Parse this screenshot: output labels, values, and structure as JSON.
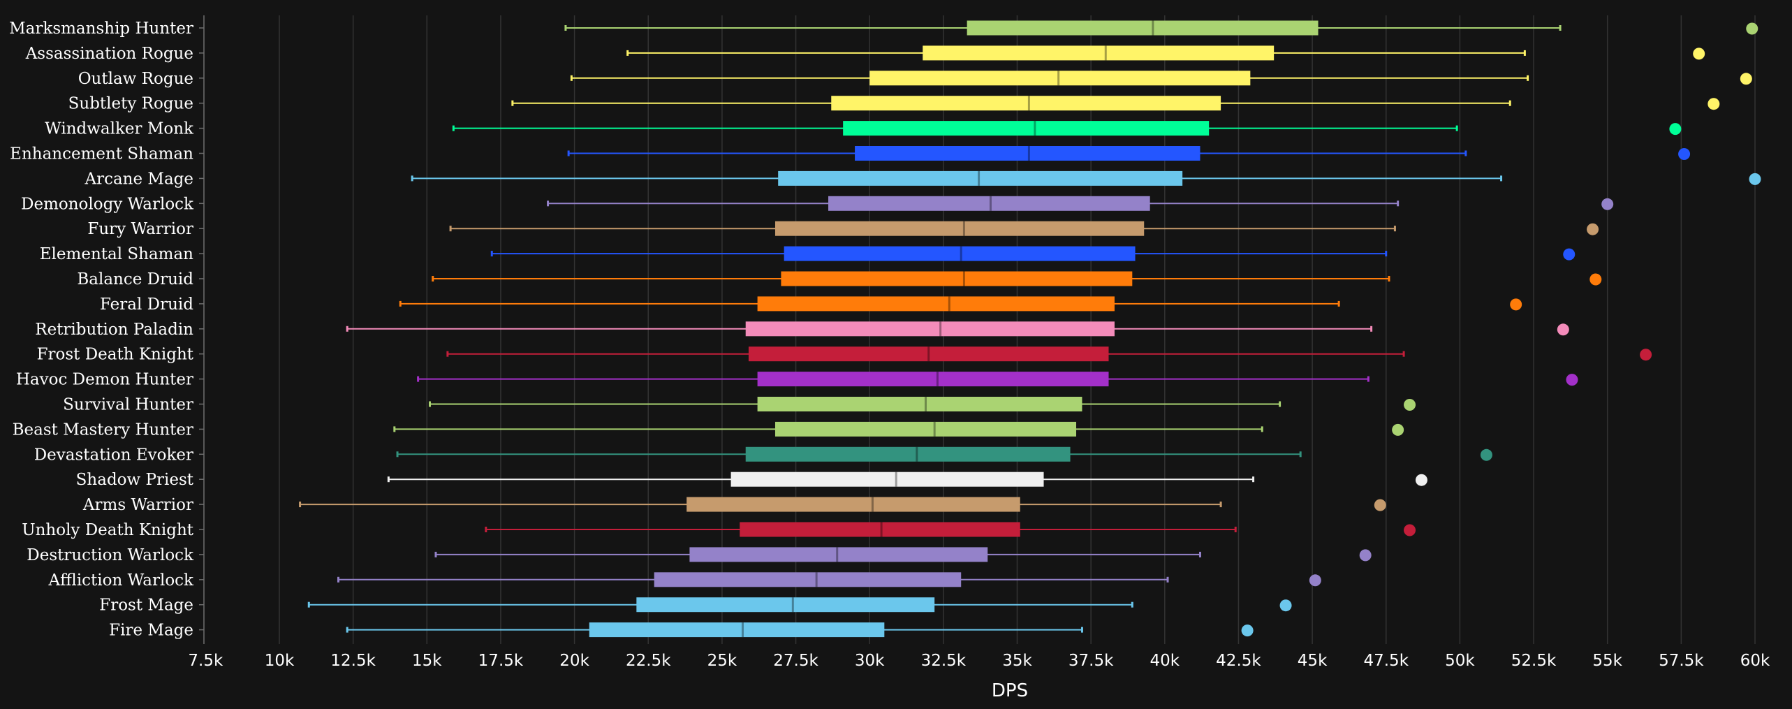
{
  "chart_data": {
    "type": "box",
    "xlabel": "DPS",
    "ylabel": "",
    "xlim": [
      7500,
      60500
    ],
    "x_ticks": [
      7500,
      10000,
      12500,
      15000,
      17500,
      20000,
      22500,
      25000,
      27500,
      30000,
      32500,
      35000,
      37500,
      40000,
      42500,
      45000,
      47500,
      50000,
      52500,
      55000,
      57500,
      60000
    ],
    "x_tick_labels": [
      "7.5k",
      "10k",
      "12.5k",
      "15k",
      "17.5k",
      "20k",
      "22.5k",
      "25k",
      "27.5k",
      "30k",
      "32.5k",
      "35k",
      "37.5k",
      "40k",
      "42.5k",
      "45k",
      "47.5k",
      "50k",
      "52.5k",
      "55k",
      "57.5k",
      "60k"
    ],
    "grid": true,
    "legend": "none",
    "series": [
      {
        "label": "Marksmanship Hunter",
        "color": "#aad372",
        "whisker_low": 19700,
        "q1": 33300,
        "median": 39600,
        "q3": 45200,
        "whisker_high": 53400,
        "outlier": 59900
      },
      {
        "label": "Assassination Rogue",
        "color": "#fff468",
        "whisker_low": 21800,
        "q1": 31800,
        "median": 38000,
        "q3": 43700,
        "whisker_high": 52200,
        "outlier": 58100
      },
      {
        "label": "Outlaw Rogue",
        "color": "#fff468",
        "whisker_low": 19900,
        "q1": 30000,
        "median": 36400,
        "q3": 42900,
        "whisker_high": 52300,
        "outlier": 59700
      },
      {
        "label": "Subtlety Rogue",
        "color": "#fff468",
        "whisker_low": 17900,
        "q1": 28700,
        "median": 35400,
        "q3": 41900,
        "whisker_high": 51700,
        "outlier": 58600
      },
      {
        "label": "Windwalker Monk",
        "color": "#00ff98",
        "whisker_low": 15900,
        "q1": 29100,
        "median": 35600,
        "q3": 41500,
        "whisker_high": 49900,
        "outlier": 57300
      },
      {
        "label": "Enhancement Shaman",
        "color": "#2456ff",
        "whisker_low": 19800,
        "q1": 29500,
        "median": 35400,
        "q3": 41200,
        "whisker_high": 50200,
        "outlier": 57600
      },
      {
        "label": "Arcane Mage",
        "color": "#6bc7ec",
        "whisker_low": 14500,
        "q1": 26900,
        "median": 33700,
        "q3": 40600,
        "whisker_high": 51400,
        "outlier": 60000
      },
      {
        "label": "Demonology Warlock",
        "color": "#9482c9",
        "whisker_low": 19100,
        "q1": 28600,
        "median": 34100,
        "q3": 39500,
        "whisker_high": 47900,
        "outlier": 55000
      },
      {
        "label": "Fury Warrior",
        "color": "#c69b6d",
        "whisker_low": 15800,
        "q1": 26800,
        "median": 33200,
        "q3": 39300,
        "whisker_high": 47800,
        "outlier": 54500
      },
      {
        "label": "Elemental Shaman",
        "color": "#2456ff",
        "whisker_low": 17200,
        "q1": 27100,
        "median": 33100,
        "q3": 39000,
        "whisker_high": 47500,
        "outlier": 53700
      },
      {
        "label": "Balance Druid",
        "color": "#ff7c0a",
        "whisker_low": 15200,
        "q1": 27000,
        "median": 33200,
        "q3": 38900,
        "whisker_high": 47600,
        "outlier": 54600
      },
      {
        "label": "Feral Druid",
        "color": "#ff7c0a",
        "whisker_low": 14100,
        "q1": 26200,
        "median": 32700,
        "q3": 38300,
        "whisker_high": 45900,
        "outlier": 51900
      },
      {
        "label": "Retribution Paladin",
        "color": "#f48cba",
        "whisker_low": 12300,
        "q1": 25800,
        "median": 32400,
        "q3": 38300,
        "whisker_high": 47000,
        "outlier": 53500
      },
      {
        "label": "Frost Death Knight",
        "color": "#c41e3a",
        "whisker_low": 15700,
        "q1": 25900,
        "median": 32000,
        "q3": 38100,
        "whisker_high": 48100,
        "outlier": 56300
      },
      {
        "label": "Havoc Demon Hunter",
        "color": "#a330c9",
        "whisker_low": 14700,
        "q1": 26200,
        "median": 32300,
        "q3": 38100,
        "whisker_high": 46900,
        "outlier": 53800
      },
      {
        "label": "Survival Hunter",
        "color": "#aad372",
        "whisker_low": 15100,
        "q1": 26200,
        "median": 31900,
        "q3": 37200,
        "whisker_high": 43900,
        "outlier": 48300
      },
      {
        "label": "Beast Mastery Hunter",
        "color": "#aad372",
        "whisker_low": 13900,
        "q1": 26800,
        "median": 32200,
        "q3": 37000,
        "whisker_high": 43300,
        "outlier": 47900
      },
      {
        "label": "Devastation Evoker",
        "color": "#33937f",
        "whisker_low": 14000,
        "q1": 25800,
        "median": 31600,
        "q3": 36800,
        "whisker_high": 44600,
        "outlier": 50900
      },
      {
        "label": "Shadow Priest",
        "color": "#f0f0f0",
        "whisker_low": 13700,
        "q1": 25300,
        "median": 30900,
        "q3": 35900,
        "whisker_high": 43000,
        "outlier": 48700
      },
      {
        "label": "Arms Warrior",
        "color": "#c69b6d",
        "whisker_low": 10700,
        "q1": 23800,
        "median": 30100,
        "q3": 35100,
        "whisker_high": 41900,
        "outlier": 47300
      },
      {
        "label": "Unholy Death Knight",
        "color": "#c41e3a",
        "whisker_low": 17000,
        "q1": 25600,
        "median": 30400,
        "q3": 35100,
        "whisker_high": 42400,
        "outlier": 48300
      },
      {
        "label": "Destruction Warlock",
        "color": "#9482c9",
        "whisker_low": 15300,
        "q1": 23900,
        "median": 28900,
        "q3": 34000,
        "whisker_high": 41200,
        "outlier": 46800
      },
      {
        "label": "Affliction Warlock",
        "color": "#9482c9",
        "whisker_low": 12000,
        "q1": 22700,
        "median": 28200,
        "q3": 33100,
        "whisker_high": 40100,
        "outlier": 45100
      },
      {
        "label": "Frost Mage",
        "color": "#6bc7ec",
        "whisker_low": 11000,
        "q1": 22100,
        "median": 27400,
        "q3": 32200,
        "whisker_high": 38900,
        "outlier": 44100
      },
      {
        "label": "Fire Mage",
        "color": "#6bc7ec",
        "whisker_low": 12300,
        "q1": 20500,
        "median": 25700,
        "q3": 30500,
        "whisker_high": 37200,
        "outlier": 42800
      }
    ]
  }
}
